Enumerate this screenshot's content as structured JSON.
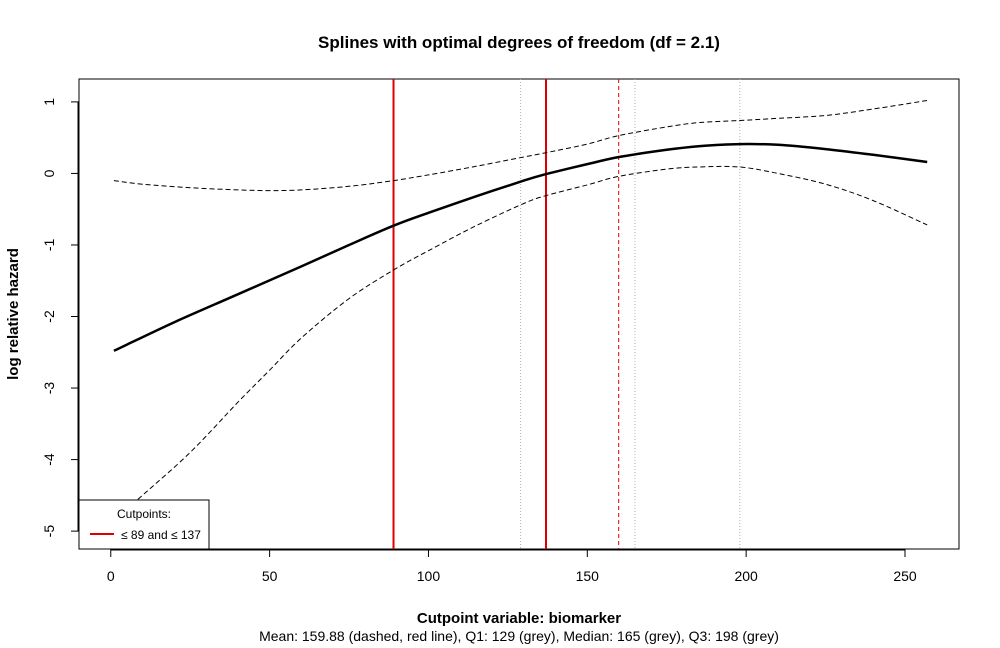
{
  "chart_data": {
    "type": "line",
    "title": "Splines with optimal degrees of freedom (df = 2.1)",
    "xlabel": "Cutpoint variable:  biomarker",
    "subtitle": "Mean: 159.88 (dashed, red line),  Q1: 129 (grey),  Median: 165 (grey),  Q3: 198 (grey)",
    "ylabel": "log relative hazard",
    "xlim": [
      -10,
      267
    ],
    "ylim": [
      -5.25,
      1.32
    ],
    "x_ticks": [
      0,
      50,
      100,
      150,
      200,
      250
    ],
    "y_ticks": [
      1,
      0,
      -1,
      -2,
      -3,
      -4,
      -5
    ],
    "series": [
      {
        "style": "solid",
        "x": [
          1,
          20,
          40,
          60,
          75,
          89,
          100,
          115,
          130,
          137,
          150,
          160,
          175,
          185,
          198,
          210,
          225,
          240,
          257
        ],
        "y": [
          -2.48,
          -2.08,
          -1.69,
          -1.3,
          -1.0,
          -0.73,
          -0.55,
          -0.32,
          -0.1,
          -0.01,
          0.13,
          0.23,
          0.33,
          0.38,
          0.41,
          0.4,
          0.34,
          0.26,
          0.16
        ]
      },
      {
        "style": "dashed",
        "x": [
          1,
          10,
          25,
          40,
          50,
          60,
          75,
          89,
          100,
          115,
          130,
          137,
          150,
          160,
          175,
          185,
          198,
          210,
          225,
          240,
          257
        ],
        "y": [
          -0.1,
          -0.15,
          -0.2,
          -0.23,
          -0.24,
          -0.23,
          -0.18,
          -0.1,
          -0.02,
          0.1,
          0.23,
          0.29,
          0.41,
          0.53,
          0.65,
          0.71,
          0.74,
          0.77,
          0.81,
          0.9,
          1.02
        ]
      },
      {
        "style": "dashed",
        "x": [
          1,
          10,
          25,
          40,
          50,
          60,
          75,
          89,
          100,
          115,
          130,
          137,
          150,
          160,
          175,
          185,
          198,
          210,
          225,
          240,
          257
        ],
        "y": [
          -4.85,
          -4.5,
          -3.9,
          -3.2,
          -2.75,
          -2.3,
          -1.75,
          -1.35,
          -1.08,
          -0.73,
          -0.42,
          -0.31,
          -0.16,
          -0.04,
          0.06,
          0.09,
          0.09,
          0.0,
          -0.15,
          -0.38,
          -0.72
        ]
      }
    ],
    "cutpoints": [
      89,
      137
    ],
    "mean_line": 159.88,
    "quartile_lines": [
      129,
      165,
      198
    ],
    "legend": {
      "title": "Cutpoints:",
      "entry": "≤ 89 and ≤ 137",
      "position": "bottom-left"
    },
    "colors": {
      "cutpoint": "#dd0000",
      "quartile": "#b0b0b0",
      "curve": "#000000"
    },
    "grid": false
  }
}
